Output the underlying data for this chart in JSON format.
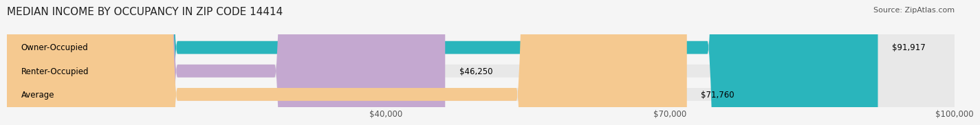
{
  "title": "MEDIAN INCOME BY OCCUPANCY IN ZIP CODE 14414",
  "source": "Source: ZipAtlas.com",
  "categories": [
    "Owner-Occupied",
    "Renter-Occupied",
    "Average"
  ],
  "values": [
    91917,
    46250,
    71760
  ],
  "bar_colors": [
    "#2ab5bc",
    "#c4a8d0",
    "#f5c990"
  ],
  "value_labels": [
    "$91,917",
    "$46,250",
    "$71,760"
  ],
  "xlim": [
    0,
    100000
  ],
  "xticks": [
    0,
    40000,
    70000,
    100000
  ],
  "xtick_labels": [
    "",
    "$40,000",
    "$70,000",
    "$100,000"
  ],
  "bg_color": "#f5f5f5",
  "bar_bg_color": "#e8e8e8",
  "title_fontsize": 11,
  "source_fontsize": 8,
  "label_fontsize": 8.5,
  "tick_fontsize": 8.5
}
